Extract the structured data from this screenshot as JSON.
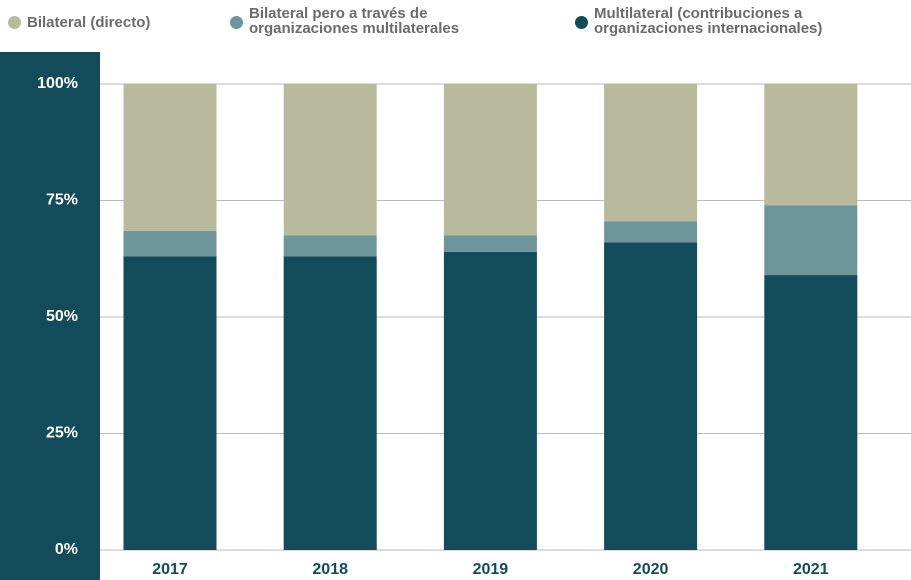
{
  "chart_data": {
    "type": "stacked_bar",
    "categories": [
      "2017",
      "2018",
      "2019",
      "2020",
      "2021"
    ],
    "series": [
      {
        "name": "Bilateral (directo)",
        "color": "#b9b99e",
        "values": [
          31.5,
          32.5,
          32.5,
          29.5,
          26
        ]
      },
      {
        "name": "Bilateral pero a través de organizaciones multilaterales",
        "color": "#6e959b",
        "values": [
          5.5,
          4.5,
          3.5,
          4.5,
          15
        ]
      },
      {
        "name": "Multilateral (contribuciones a organizaciones internacionales)",
        "color": "#124b59",
        "values": [
          63,
          63,
          64,
          66,
          59
        ]
      }
    ],
    "ylim": [
      0,
      100
    ],
    "yticks": [
      {
        "value": 0,
        "label": "0%"
      },
      {
        "value": 25,
        "label": "25%"
      },
      {
        "value": 50,
        "label": "50%"
      },
      {
        "value": 75,
        "label": "75%"
      },
      {
        "value": 100,
        "label": "100%"
      }
    ],
    "grid": true
  }
}
